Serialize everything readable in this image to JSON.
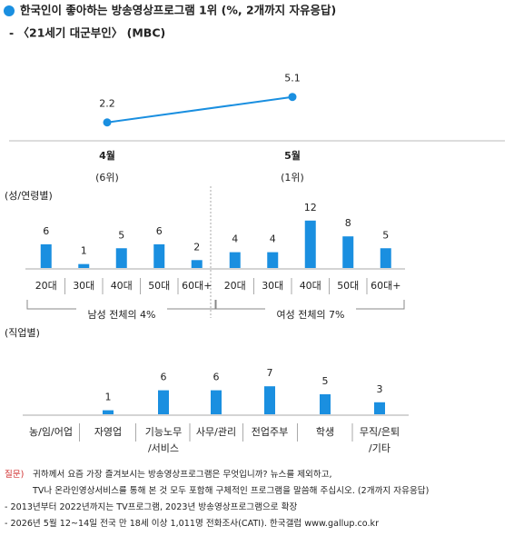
{
  "header": {
    "title": "한국인이 좋아하는 방송영상프로그램 1위 (%, 2개까지 자유응답)",
    "subtitle": "- 〈21세기 대군부인〉 (MBC)"
  },
  "chart_data": [
    {
      "type": "line",
      "categories": [
        "4월",
        "5월"
      ],
      "rank_labels": [
        "(6위)",
        "(1위)"
      ],
      "values": [
        2.2,
        5.1
      ],
      "color": "#1a8fe0"
    },
    {
      "type": "grouped-bar",
      "title": "(성/연령별)",
      "color": "#1a8fe0",
      "groups": [
        {
          "label": "남성 전체의 4%",
          "categories": [
            "20대",
            "30대",
            "40대",
            "50대",
            "60대+"
          ],
          "values": [
            6,
            1,
            5,
            6,
            2
          ]
        },
        {
          "label": "여성 전체의 7%",
          "categories": [
            "20대",
            "30대",
            "40대",
            "50대",
            "60대+"
          ],
          "values": [
            4,
            4,
            12,
            8,
            5
          ]
        }
      ]
    },
    {
      "type": "bar",
      "title": "(직업별)",
      "color": "#1a8fe0",
      "categories": [
        [
          "농/임/어업"
        ],
        [
          "자영업"
        ],
        [
          "기능노무",
          "/서비스"
        ],
        [
          "사무/관리"
        ],
        [
          "전업주부"
        ],
        [
          "학생"
        ],
        [
          "무직/은퇴",
          "/기타"
        ]
      ],
      "values": [
        null,
        1,
        6,
        6,
        7,
        5,
        3
      ]
    }
  ],
  "notes": {
    "question_label": "질문)",
    "question": [
      "귀하께서 요즘 가장 즐겨보시는 방송영상프로그램은 무엇입니까? 뉴스를 제외하고,",
      "TV나 온라인영상서비스를 통해 본 것 모두 포함해 구체적인 프로그램을 말씀해 주십시오. (2개까지 자유응답)"
    ],
    "lines": [
      "- 2013년부터 2022년까지는 TV프로그램, 2023년 방송영상프로그램으로 확장",
      "- 2026년 5월 12~14일 전국 만 18세 이상 1,011명 전화조사(CATI). 한국갤럽 www.gallup.co.kr"
    ]
  }
}
